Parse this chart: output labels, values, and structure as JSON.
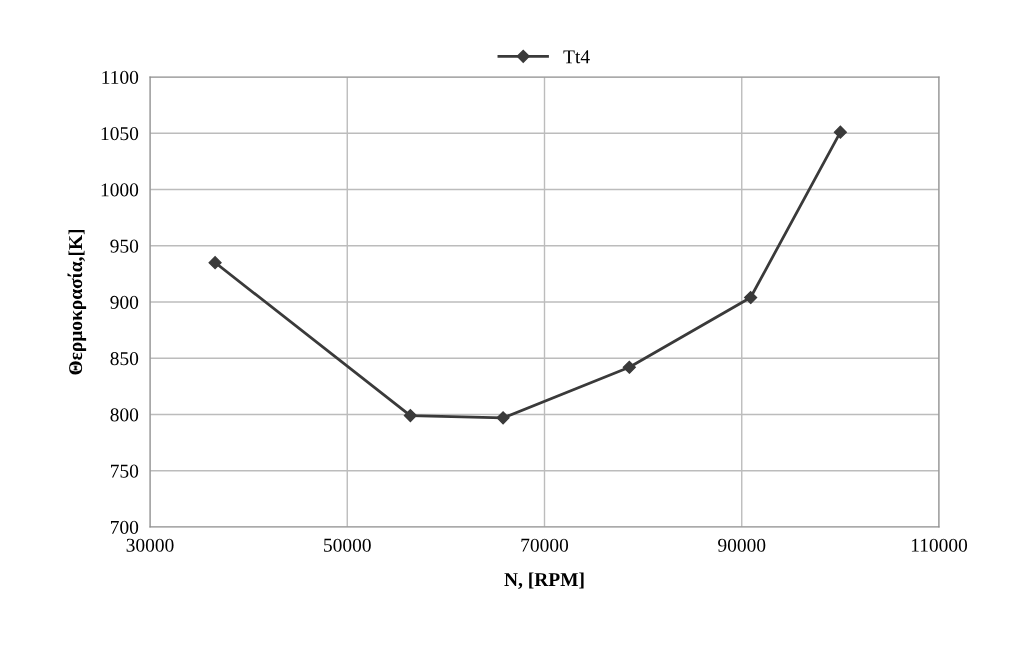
{
  "chart_data": {
    "type": "line",
    "xlabel": "N, [RPM]",
    "ylabel": "Θερμοκρασία,[K]",
    "x": [
      36600,
      56400,
      65800,
      78600,
      90900,
      100000
    ],
    "series": [
      {
        "name": "Tt4",
        "color": "#3a3a3a",
        "values": [
          935,
          799,
          797,
          842,
          904,
          1051
        ]
      }
    ],
    "xlim": [
      30000,
      110000
    ],
    "xticks": [
      30000,
      50000,
      70000,
      90000,
      110000
    ],
    "ylim": [
      700,
      1100
    ],
    "yticks": [
      700,
      750,
      800,
      850,
      900,
      950,
      1000,
      1050,
      1100
    ],
    "grid": true,
    "legend": "top",
    "marker": "diamond",
    "line_style": "solid"
  }
}
